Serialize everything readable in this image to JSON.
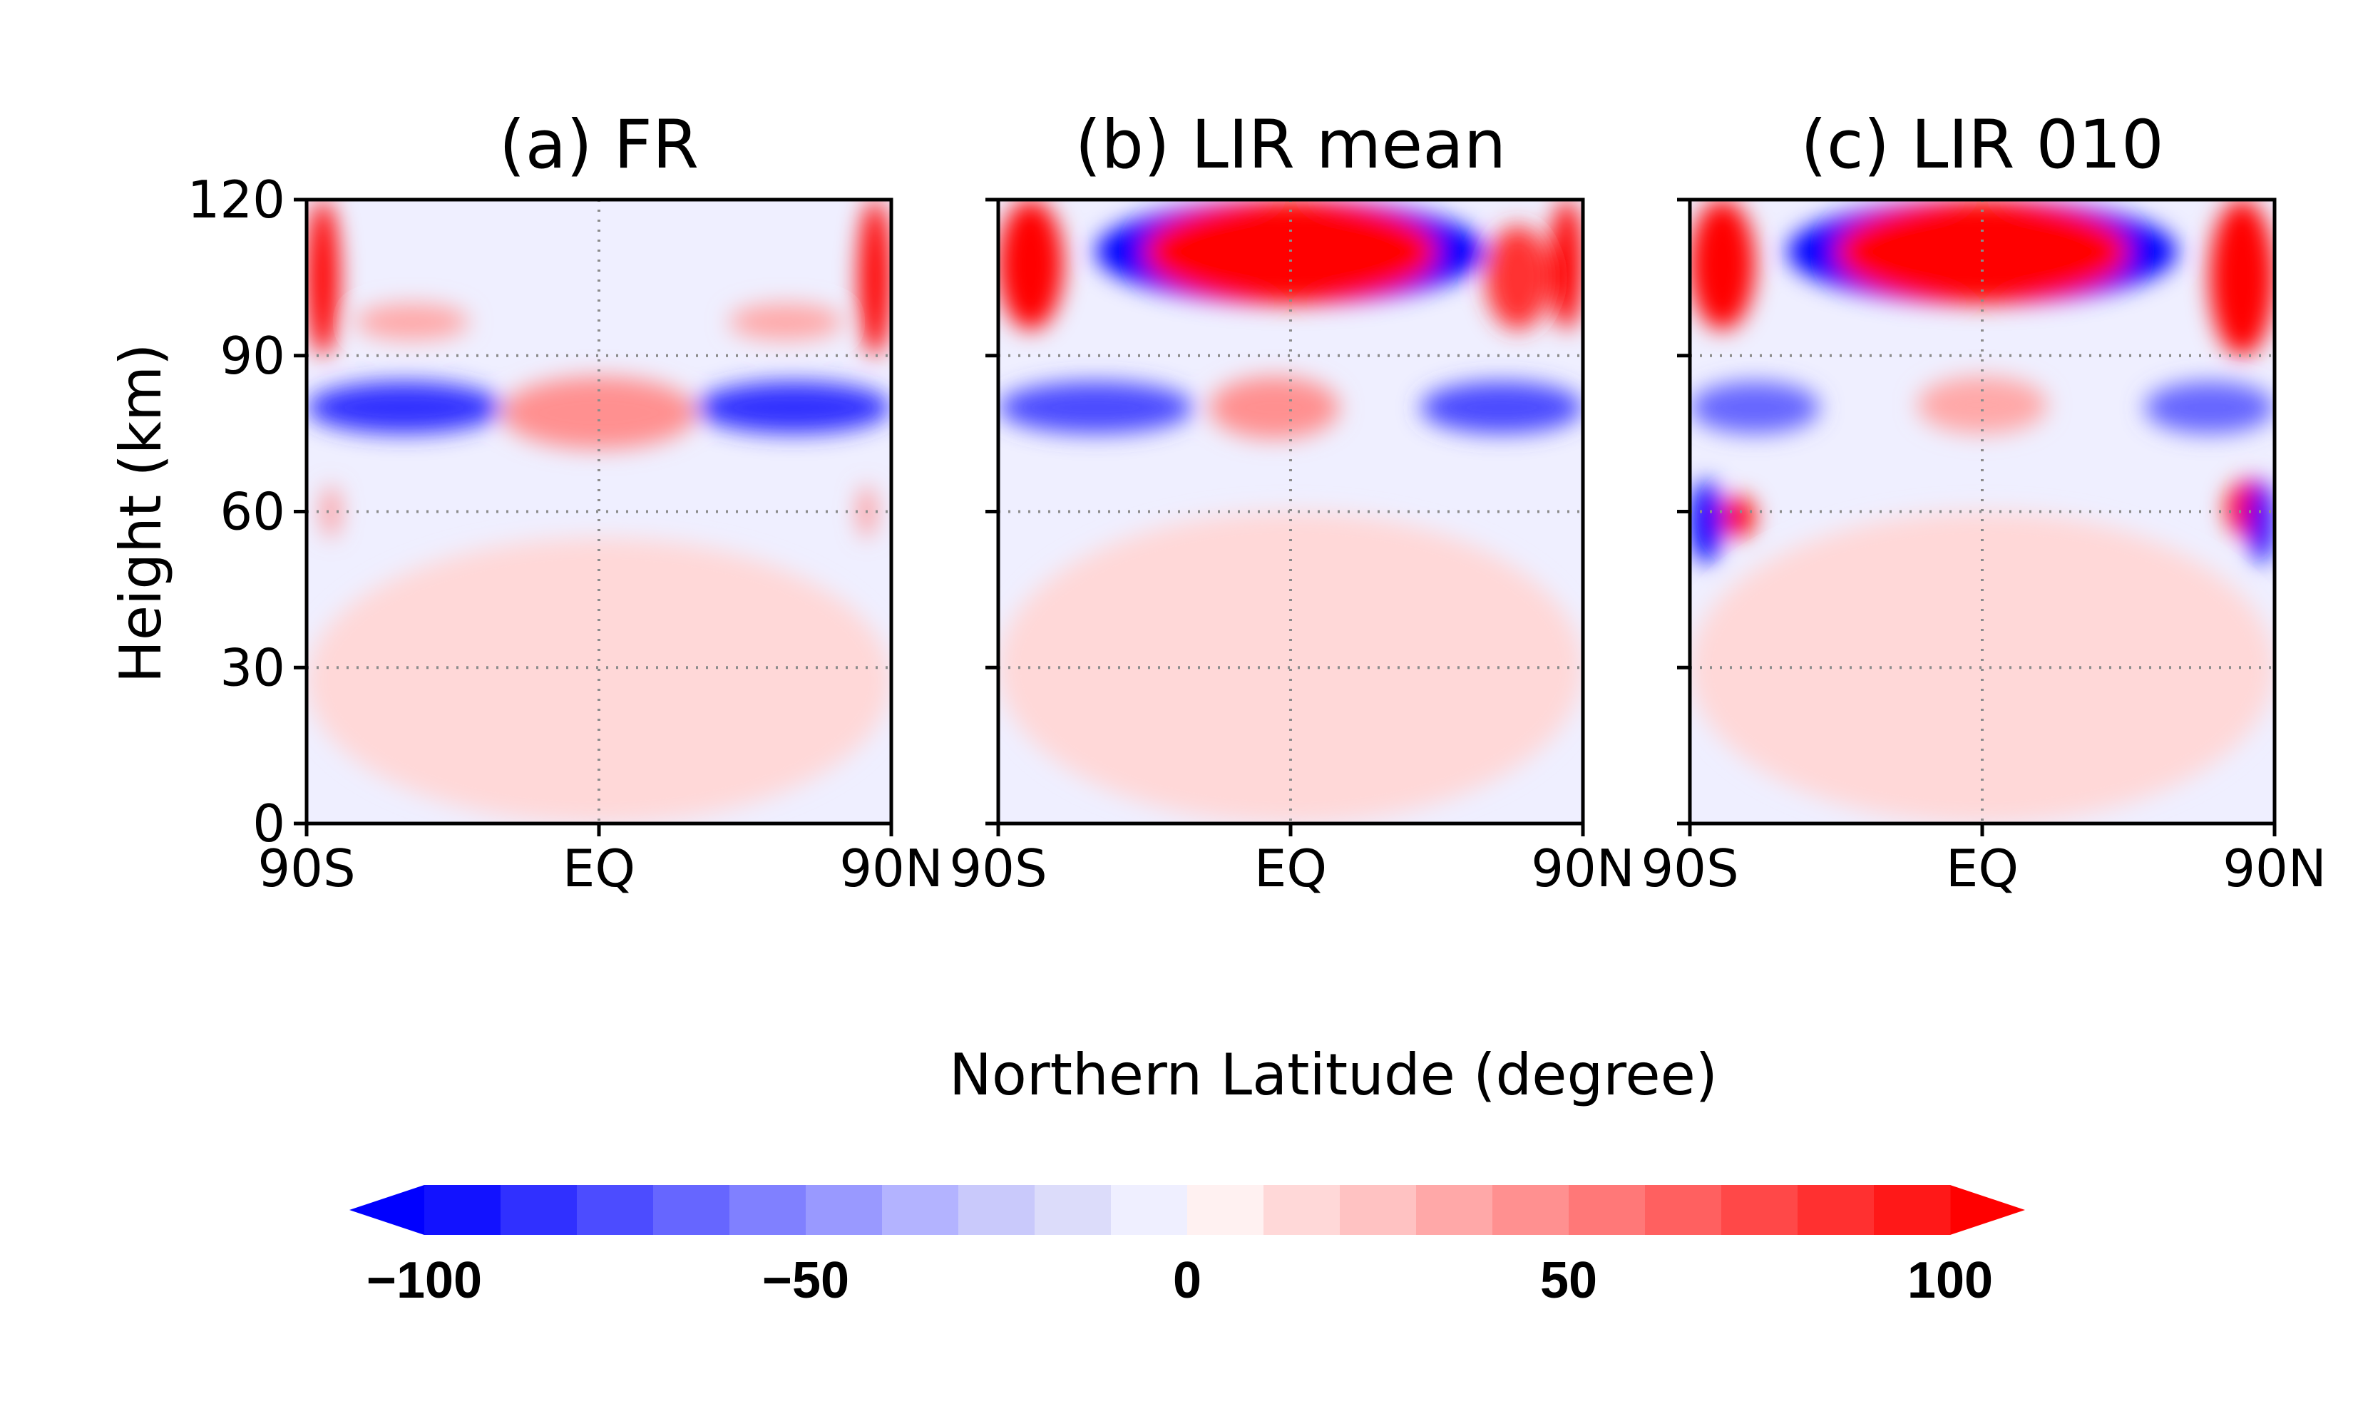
{
  "chart_data": {
    "type": "heatmap",
    "xlabel": "Northern Latitude (degree)",
    "ylabel": "Height (km)",
    "x_ticks": [
      "90S",
      "EQ",
      "90N"
    ],
    "y_ticks": [
      "0",
      "30",
      "60",
      "90",
      "120"
    ],
    "x_range": [
      -90,
      90
    ],
    "ylim": [
      0,
      120
    ],
    "grid": "dotted at EQ and 30, 60, 90 km",
    "panels": [
      {
        "title": "(a) FR",
        "features": [
          {
            "lat": [
              -90,
              -80
            ],
            "z": [
              90,
              120
            ],
            "value": 100
          },
          {
            "lat": [
              80,
              90
            ],
            "z": [
              90,
              120
            ],
            "value": 100
          },
          {
            "lat": [
              -75,
              -40
            ],
            "z": [
              93,
              100
            ],
            "value": 30
          },
          {
            "lat": [
              40,
              75
            ],
            "z": [
              93,
              100
            ],
            "value": 30
          },
          {
            "lat": [
              -90,
              -30
            ],
            "z": [
              75,
              85
            ],
            "value": -90
          },
          {
            "lat": [
              30,
              90
            ],
            "z": [
              75,
              85
            ],
            "value": -90
          },
          {
            "lat": [
              -30,
              30
            ],
            "z": [
              72,
              86
            ],
            "value": 40
          },
          {
            "lat": [
              -85,
              -80
            ],
            "z": [
              55,
              65
            ],
            "value": 40
          },
          {
            "lat": [
              80,
              85
            ],
            "z": [
              55,
              65
            ],
            "value": 40
          },
          {
            "lat": [
              -90,
              90
            ],
            "z": [
              0,
              55
            ],
            "value": 10
          }
        ]
      },
      {
        "title": "(b) LIR mean",
        "features": [
          {
            "lat": [
              -90,
              -70
            ],
            "z": [
              95,
              120
            ],
            "value": 100
          },
          {
            "lat": [
              -60,
              60
            ],
            "z": [
              100,
              120
            ],
            "value": -100
          },
          {
            "lat": [
              -45,
              45
            ],
            "z": [
              100,
              120
            ],
            "value": 100
          },
          {
            "lat": [
              60,
              80
            ],
            "z": [
              95,
              115
            ],
            "value": 80
          },
          {
            "lat": [
              80,
              90
            ],
            "z": [
              95,
              120
            ],
            "value": 100
          },
          {
            "lat": [
              -90,
              -30
            ],
            "z": [
              75,
              85
            ],
            "value": -80
          },
          {
            "lat": [
              40,
              90
            ],
            "z": [
              75,
              85
            ],
            "value": -80
          },
          {
            "lat": [
              -25,
              15
            ],
            "z": [
              74,
              86
            ],
            "value": 40
          },
          {
            "lat": [
              -90,
              90
            ],
            "z": [
              0,
              60
            ],
            "value": 10
          }
        ]
      },
      {
        "title": "(c) LIR 010",
        "features": [
          {
            "lat": [
              -90,
              -70
            ],
            "z": [
              95,
              120
            ],
            "value": 100
          },
          {
            "lat": [
              -60,
              60
            ],
            "z": [
              100,
              120
            ],
            "value": -100
          },
          {
            "lat": [
              -45,
              45
            ],
            "z": [
              100,
              120
            ],
            "value": 100
          },
          {
            "lat": [
              70,
              90
            ],
            "z": [
              90,
              120
            ],
            "value": 100
          },
          {
            "lat": [
              -90,
              -50
            ],
            "z": [
              75,
              85
            ],
            "value": -70
          },
          {
            "lat": [
              50,
              90
            ],
            "z": [
              75,
              85
            ],
            "value": -70
          },
          {
            "lat": [
              -20,
              20
            ],
            "z": [
              75,
              86
            ],
            "value": 35
          },
          {
            "lat": [
              -90,
              -80
            ],
            "z": [
              50,
              66
            ],
            "value": -100
          },
          {
            "lat": [
              -80,
              -70
            ],
            "z": [
              55,
              63
            ],
            "value": 100
          },
          {
            "lat": [
              75,
              90
            ],
            "z": [
              55,
              66
            ],
            "value": 100
          },
          {
            "lat": [
              82,
              90
            ],
            "z": [
              50,
              66
            ],
            "value": -100
          },
          {
            "lat": [
              -90,
              90
            ],
            "z": [
              0,
              60
            ],
            "value": 10
          }
        ]
      }
    ]
  },
  "colorbar": {
    "levels": [
      -100,
      -90,
      -80,
      -70,
      -60,
      -50,
      -40,
      -30,
      -20,
      -10,
      0,
      10,
      20,
      30,
      40,
      50,
      60,
      70,
      80,
      90,
      100
    ],
    "colors": [
      "#1212ff",
      "#3030ff",
      "#4c4cff",
      "#6666ff",
      "#8080ff",
      "#9999ff",
      "#b3b3ff",
      "#c9c9fb",
      "#dcdcfa",
      "#efefff",
      "#fff1f1",
      "#ffd8d8",
      "#ffc2c2",
      "#ffa8a8",
      "#ff9090",
      "#ff7878",
      "#ff6060",
      "#ff4848",
      "#ff3030",
      "#ff1818"
    ],
    "under_color": "#0000ff",
    "over_color": "#ff0000",
    "tick_labels": [
      "−100",
      "−50",
      "0",
      "50",
      "100"
    ]
  }
}
